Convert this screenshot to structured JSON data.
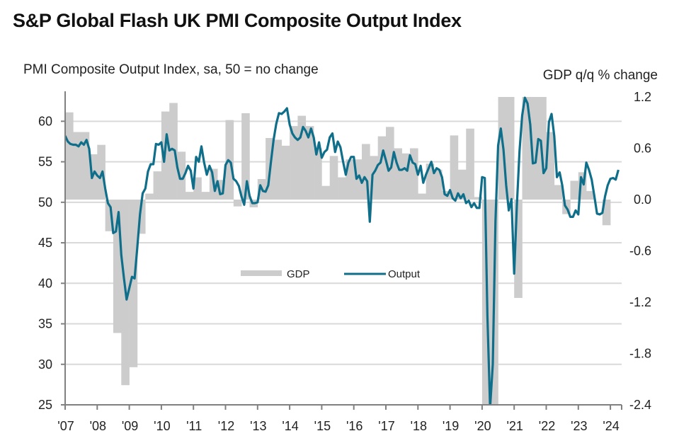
{
  "chart_data": {
    "type": "bar+line",
    "title": "S&P Global Flash UK PMI Composite Output Index",
    "ylabel_left": "PMI Composite  Output  Index, sa, 50 = no change",
    "ylabel_right": "GDP q/q % change",
    "xlabel": "",
    "grid": true,
    "legend_position": "center",
    "x_start": "2007-01",
    "x_tick_labels": [
      "'07",
      "'08",
      "'09",
      "'10",
      "'11",
      "'12",
      "'13",
      "'14",
      "'15",
      "'16",
      "'17",
      "'18",
      "'19",
      "'20",
      "'21",
      "'22",
      "'23",
      "'24"
    ],
    "left_axis": {
      "ylim": [
        25,
        63
      ],
      "ticks": [
        25,
        30,
        35,
        40,
        45,
        50,
        55,
        60
      ]
    },
    "right_axis": {
      "ylim": [
        -2.4,
        1.2
      ],
      "ticks": [
        "-2.4",
        "-1.8",
        "-1.2",
        "-0.6",
        "0.0",
        "0.6",
        "1.2"
      ]
    },
    "colors": {
      "gdp": "#cccccc",
      "output": "#0f6f8a",
      "grid": "#d9d9d9",
      "axis": "#808080"
    },
    "series": [
      {
        "name": "GDP",
        "type": "bar",
        "axis": "right",
        "frequency": "quarterly",
        "start": "2007-Q1",
        "values": [
          1.02,
          0.79,
          0.79,
          0.53,
          0.64,
          -0.37,
          -1.56,
          -2.17,
          -1.96,
          -0.4,
          0.07,
          0.33,
          1.03,
          1.13,
          0.56,
          0.09,
          0.26,
          0.09,
          0.36,
          0.23,
          0.93,
          -0.08,
          1.01,
          -0.09,
          0.24,
          0.72,
          0.7,
          0.63,
          0.86,
          0.98,
          0.86,
          0.6,
          0.16,
          0.51,
          0.26,
          0.47,
          0.47,
          0.65,
          0.51,
          0.74,
          0.85,
          0.6,
          0.54,
          0.6,
          0.07,
          0.42,
          0.35,
          0.1,
          0.75,
          0.35,
          0.83,
          0.03,
          -2.6,
          -19.0,
          1.2,
          1.2,
          -1.15,
          1.2,
          1.2,
          1.2,
          0.79,
          0.17,
          -0.17,
          0.22,
          0.32,
          0.1,
          0.0,
          -0.3
        ]
      },
      {
        "name": "Output",
        "type": "line",
        "axis": "left",
        "frequency": "monthly",
        "start": "2007-01",
        "values": [
          58.2,
          57.5,
          57.2,
          57.1,
          57.1,
          56.9,
          57.4,
          57.1,
          57.7,
          56.6,
          53.0,
          53.8,
          53.3,
          53.0,
          53.8,
          51.7,
          49.9,
          49.4,
          46.2,
          46.4,
          48.8,
          43.5,
          40.6,
          38.0,
          39.4,
          40.8,
          40.6,
          44.4,
          48.5,
          51.1,
          51.7,
          53.8,
          54.7,
          54.7,
          57.2,
          57.1,
          57.4,
          55.0,
          58.4,
          56.4,
          56.6,
          56.4,
          54.3,
          52.9,
          52.9,
          53.6,
          54.5,
          53.9,
          51.7,
          55.6,
          55.0,
          56.9,
          54.9,
          53.4,
          54.5,
          53.7,
          51.4,
          52.6,
          51.0,
          51.1,
          54.6,
          55.2,
          54.9,
          52.9,
          52.6,
          52.0,
          50.7,
          49.7,
          52.6,
          50.8,
          49.9,
          49.9,
          50.0,
          52.1,
          51.4,
          51.3,
          52.1,
          55.0,
          57.7,
          59.7,
          61.0,
          60.9,
          61.2,
          61.6,
          59.6,
          58.5,
          58.0,
          57.7,
          58.0,
          59.3,
          58.8,
          58.0,
          59.1,
          58.0,
          55.9,
          57.4,
          55.5,
          56.2,
          56.5,
          58.0,
          58.5,
          56.2,
          57.5,
          56.8,
          55.0,
          53.4,
          54.9,
          55.6,
          55.6,
          52.9,
          53.3,
          52.4,
          53.1,
          52.6,
          47.6,
          53.4,
          53.9,
          54.6,
          54.9,
          56.4,
          55.2,
          53.9,
          54.3,
          56.2,
          54.9,
          54.0,
          54.0,
          54.2,
          53.9,
          55.8,
          54.9,
          54.7,
          53.4,
          54.5,
          52.4,
          53.4,
          54.2,
          55.0,
          53.6,
          54.2,
          54.0,
          53.1,
          51.0,
          50.8,
          51.5,
          50.5,
          50.2,
          51.1,
          50.5,
          51.0,
          49.9,
          50.2,
          49.4,
          49.9,
          49.3,
          49.3,
          53.1,
          53.0,
          36.0,
          13.8,
          30.0,
          47.7,
          57.0,
          59.1,
          56.5,
          52.1,
          49.0,
          50.4,
          41.2,
          49.6,
          56.4,
          60.7,
          62.9,
          62.2,
          59.6,
          54.8,
          54.9,
          57.8,
          57.6,
          53.6,
          54.2,
          59.9,
          60.9,
          58.2,
          53.1,
          53.7,
          52.1,
          49.6,
          49.1,
          48.2,
          48.2,
          49.0,
          48.5,
          53.1,
          52.2,
          54.9,
          54.0,
          52.8,
          50.8,
          48.6,
          48.5,
          48.7,
          50.7,
          52.1,
          52.9,
          53.0,
          52.8,
          54.0
        ]
      }
    ]
  },
  "legend": {
    "gdp_label": "GDP",
    "output_label": "Output"
  }
}
